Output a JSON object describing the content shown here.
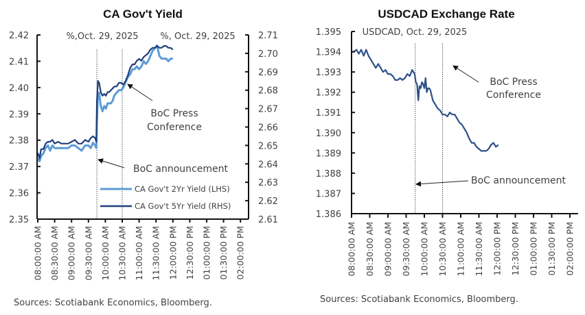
{
  "chart_data": [
    {
      "type": "line",
      "title": "CA Gov't Yield",
      "left_unit_label": "%,Oct. 29, 2025",
      "right_unit_label": "%, Oct. 29, 2025",
      "source": "Sources: Scotiabank Economics, Bloomberg.",
      "x_tick_labels": [
        "08:00:00 AM",
        "08:30:00 AM",
        "09:00:00 AM",
        "09:30:00 AM",
        "10:00:00 AM",
        "10:30:00 AM",
        "11:00:00 AM",
        "11:30:00 AM",
        "12:00:00 PM",
        "12:30:00 PM",
        "01:00:00 PM",
        "01:30:00 PM",
        "02:00:00 PM"
      ],
      "x_unit": "minutes since 08:00:00 AM",
      "xlim": [
        0,
        360
      ],
      "ylim_left": [
        2.35,
        2.42
      ],
      "yticks_left": [
        "2.35",
        "2.36",
        "2.37",
        "2.38",
        "2.39",
        "2.40",
        "2.41",
        "2.42"
      ],
      "ylim_right": [
        2.61,
        2.71
      ],
      "yticks_right": [
        "2.61",
        "2.62",
        "2.63",
        "2.64",
        "2.65",
        "2.66",
        "2.67",
        "2.68",
        "2.69",
        "2.70",
        "2.71"
      ],
      "vlines": [
        105,
        150
      ],
      "annotations": [
        {
          "text_lines": [
            "BoC Press",
            "Conference"
          ],
          "points_to": 150
        },
        {
          "text_lines": [
            "BoC announcement"
          ],
          "points_to": 105
        }
      ],
      "series": [
        {
          "name": "CA Gov't 2Yr Yield (LHS)",
          "axis": "left",
          "color": "#5b9bd5",
          "x": [
            0,
            3,
            6,
            10,
            14,
            18,
            22,
            26,
            30,
            36,
            42,
            48,
            54,
            60,
            66,
            72,
            78,
            84,
            90,
            94,
            98,
            102,
            104,
            105,
            107,
            109,
            112,
            115,
            118,
            121,
            124,
            127,
            130,
            133,
            136,
            140,
            144,
            148,
            152,
            156,
            160,
            164,
            168,
            172,
            176,
            180,
            184,
            188,
            192,
            196,
            200,
            204,
            208,
            212,
            216,
            220,
            224,
            228,
            232,
            236,
            240
          ],
          "values": [
            2.373,
            2.372,
            2.374,
            2.375,
            2.377,
            2.378,
            2.376,
            2.378,
            2.377,
            2.377,
            2.377,
            2.377,
            2.377,
            2.378,
            2.378,
            2.377,
            2.376,
            2.378,
            2.378,
            2.377,
            2.379,
            2.378,
            2.377,
            2.386,
            2.398,
            2.398,
            2.393,
            2.391,
            2.393,
            2.392,
            2.394,
            2.394,
            2.394,
            2.395,
            2.397,
            2.398,
            2.399,
            2.399,
            2.4,
            2.402,
            2.404,
            2.405,
            2.407,
            2.407,
            2.408,
            2.407,
            2.408,
            2.41,
            2.409,
            2.41,
            2.412,
            2.414,
            2.415,
            2.416,
            2.412,
            2.411,
            2.411,
            2.411,
            2.41,
            2.411,
            2.411
          ]
        },
        {
          "name": "CA Gov't 5Yr Yield (RHS)",
          "axis": "right",
          "color": "#1f3d7a",
          "x": [
            0,
            3,
            6,
            10,
            14,
            18,
            22,
            26,
            30,
            36,
            42,
            48,
            54,
            60,
            66,
            72,
            78,
            84,
            90,
            94,
            98,
            102,
            104,
            105,
            107,
            109,
            112,
            115,
            118,
            121,
            124,
            127,
            130,
            133,
            136,
            140,
            144,
            148,
            152,
            156,
            160,
            164,
            168,
            172,
            176,
            180,
            184,
            188,
            192,
            196,
            200,
            204,
            208,
            212,
            216,
            220,
            224,
            228,
            232,
            236,
            240
          ],
          "values": [
            2.646,
            2.643,
            2.648,
            2.648,
            2.651,
            2.652,
            2.652,
            2.653,
            2.651,
            2.652,
            2.651,
            2.651,
            2.651,
            2.652,
            2.653,
            2.651,
            2.651,
            2.653,
            2.652,
            2.654,
            2.655,
            2.654,
            2.652,
            2.674,
            2.685,
            2.684,
            2.679,
            2.677,
            2.678,
            2.677,
            2.679,
            2.679,
            2.68,
            2.681,
            2.682,
            2.682,
            2.684,
            2.684,
            2.683,
            2.685,
            2.688,
            2.692,
            2.694,
            2.694,
            2.696,
            2.697,
            2.696,
            2.698,
            2.699,
            2.7,
            2.702,
            2.703,
            2.703,
            2.704,
            2.703,
            2.703,
            2.704,
            2.704,
            2.703,
            2.703,
            2.702
          ]
        }
      ]
    },
    {
      "type": "line",
      "title": "USDCAD Exchange Rate",
      "unit_label": "USDCAD, Oct. 29, 2025",
      "source": "Sources: Scotiabank Economics, Bloomberg.",
      "x_tick_labels": [
        "08:00:00 AM",
        "08:30:00 AM",
        "09:00:00 AM",
        "09:30:00 AM",
        "10:00:00 AM",
        "10:30:00 AM",
        "11:00:00 AM",
        "11:30:00 AM",
        "12:00:00 PM",
        "12:30:00 PM",
        "01:00:00 PM",
        "01:30:00 PM",
        "02:00:00 PM"
      ],
      "x_unit": "minutes since 08:00:00 AM",
      "xlim": [
        0,
        360
      ],
      "ylim": [
        1.386,
        1.395
      ],
      "yticks": [
        "1.386",
        "1.387",
        "1.388",
        "1.389",
        "1.390",
        "1.391",
        "1.392",
        "1.393",
        "1.394",
        "1.395"
      ],
      "vlines": [
        105,
        150
      ],
      "annotations": [
        {
          "text_lines": [
            "BoC Press",
            "Conference"
          ],
          "points_to": 150
        },
        {
          "text_lines": [
            "BoC announcement"
          ],
          "points_to": 105
        }
      ],
      "series": [
        {
          "name": "USDCAD",
          "color": "#2c4f87",
          "x": [
            0,
            4,
            8,
            12,
            16,
            20,
            24,
            28,
            32,
            36,
            40,
            44,
            48,
            52,
            56,
            60,
            64,
            68,
            72,
            76,
            80,
            84,
            88,
            92,
            96,
            100,
            104,
            106,
            108,
            110,
            112,
            114,
            116,
            118,
            120,
            122,
            124,
            126,
            128,
            130,
            134,
            138,
            142,
            146,
            150,
            154,
            158,
            162,
            166,
            170,
            174,
            178,
            182,
            186,
            190,
            194,
            198,
            202,
            206,
            210,
            214,
            218,
            222,
            226,
            230,
            234,
            238,
            242
          ],
          "values": [
            1.394,
            1.394,
            1.3941,
            1.3939,
            1.3941,
            1.3938,
            1.3941,
            1.3938,
            1.3936,
            1.3934,
            1.3932,
            1.3934,
            1.3932,
            1.393,
            1.3931,
            1.3929,
            1.3929,
            1.3928,
            1.3926,
            1.3926,
            1.3927,
            1.3926,
            1.3927,
            1.3929,
            1.3928,
            1.3931,
            1.3929,
            1.3925,
            1.3924,
            1.3916,
            1.3923,
            1.3922,
            1.3925,
            1.3924,
            1.3922,
            1.3927,
            1.392,
            1.3922,
            1.3922,
            1.3921,
            1.3916,
            1.3914,
            1.3912,
            1.3911,
            1.3909,
            1.3909,
            1.3908,
            1.391,
            1.3909,
            1.3909,
            1.3907,
            1.3905,
            1.3904,
            1.3902,
            1.39,
            1.3897,
            1.3895,
            1.3895,
            1.3893,
            1.3892,
            1.3891,
            1.3891,
            1.3891,
            1.3892,
            1.3894,
            1.3895,
            1.3893,
            1.3894
          ]
        }
      ]
    }
  ]
}
